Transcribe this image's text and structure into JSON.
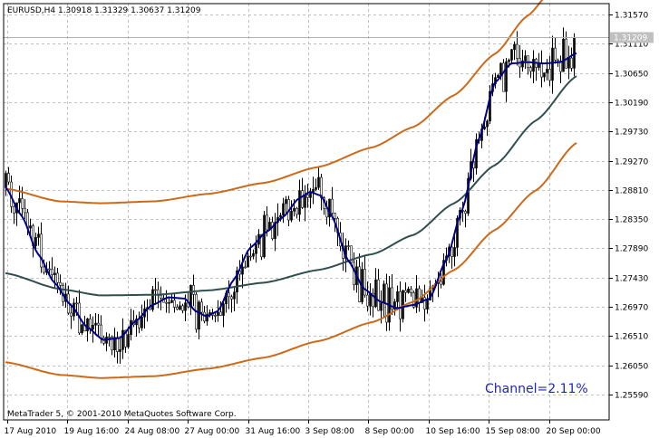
{
  "chart_data": {
    "type": "candlestick",
    "symbol_info": "EURUSD,H4  1.30918 1.31329 1.30637 1.31209",
    "watermark": "MetaTrader 5, © 2001-2010 MetaQuotes Software Corp.",
    "annotation": "Channel=2.11%",
    "current_price_label": "1.31209",
    "current_price": 1.31209,
    "ylim": [
      1.253,
      1.319
    ],
    "y_ticks": [
      "1.31570",
      "1.31110",
      "1.30650",
      "1.30190",
      "1.29730",
      "1.29270",
      "1.28810",
      "1.28350",
      "1.27890",
      "1.27430",
      "1.26970",
      "1.26510",
      "1.26050",
      "1.25590"
    ],
    "x_ticks": [
      "17 Aug 2010",
      "19 Aug 16:00",
      "24 Aug 08:00",
      "27 Aug 00:00",
      "31 Aug 16:00",
      "3 Sep 08:00",
      "8 Sep 00:00",
      "10 Sep 16:00",
      "15 Sep 08:00",
      "20 Sep 00:00"
    ],
    "grid": true,
    "colors": {
      "background": "#ffffff",
      "grid": "#c0c0c0",
      "candles": "#000000",
      "channel_bands": "#cc6a1a",
      "slow_ma": "#2f4f4f",
      "fast_filter": "#00008b",
      "annotation": "#1f2aa8"
    },
    "series": [
      {
        "name": "fast",
        "values": [
          [
            0,
            1.2885
          ],
          [
            6,
            1.284
          ],
          [
            12,
            1.278
          ],
          [
            18,
            1.2735
          ],
          [
            24,
            1.27
          ],
          [
            30,
            1.2665
          ],
          [
            36,
            1.2645
          ],
          [
            42,
            1.2648
          ],
          [
            48,
            1.2675
          ],
          [
            54,
            1.27
          ],
          [
            60,
            1.2712
          ],
          [
            66,
            1.271
          ],
          [
            70,
            1.269
          ],
          [
            74,
            1.2682
          ],
          [
            78,
            1.269
          ],
          [
            84,
            1.274
          ],
          [
            90,
            1.279
          ],
          [
            96,
            1.2815
          ],
          [
            102,
            1.2838
          ],
          [
            108,
            1.2868
          ],
          [
            112,
            1.2878
          ],
          [
            116,
            1.2872
          ],
          [
            120,
            1.284
          ],
          [
            126,
            1.277
          ],
          [
            132,
            1.2725
          ],
          [
            138,
            1.2705
          ],
          [
            144,
            1.2695
          ],
          [
            150,
            1.27
          ],
          [
            156,
            1.271
          ],
          [
            162,
            1.277
          ],
          [
            168,
            1.285
          ],
          [
            174,
            1.296
          ],
          [
            180,
            1.305
          ],
          [
            186,
            1.308
          ],
          [
            192,
            1.3082
          ],
          [
            198,
            1.308
          ],
          [
            204,
            1.3082
          ],
          [
            210,
            1.3096
          ]
        ]
      },
      {
        "name": "slow",
        "values": [
          [
            0,
            1.275
          ],
          [
            20,
            1.2725
          ],
          [
            35,
            1.2715
          ],
          [
            55,
            1.2716
          ],
          [
            75,
            1.2723
          ],
          [
            95,
            1.2735
          ],
          [
            115,
            1.2755
          ],
          [
            135,
            1.278
          ],
          [
            150,
            1.281
          ],
          [
            165,
            1.286
          ],
          [
            180,
            1.292
          ],
          [
            195,
            1.299
          ],
          [
            210,
            1.306
          ]
        ]
      },
      {
        "name": "upper",
        "values": [
          [
            0,
            1.2883
          ],
          [
            20,
            1.2863
          ],
          [
            35,
            1.286
          ],
          [
            55,
            1.2863
          ],
          [
            75,
            1.2875
          ],
          [
            95,
            1.2892
          ],
          [
            115,
            1.2917
          ],
          [
            135,
            1.2948
          ],
          [
            150,
            1.298
          ],
          [
            165,
            1.303
          ],
          [
            180,
            1.3095
          ],
          [
            192,
            1.3155
          ],
          [
            200,
            1.319
          ]
        ]
      },
      {
        "name": "lower",
        "values": [
          [
            0,
            1.261
          ],
          [
            20,
            1.259
          ],
          [
            35,
            1.2585
          ],
          [
            55,
            1.2588
          ],
          [
            75,
            1.26
          ],
          [
            95,
            1.2617
          ],
          [
            115,
            1.2643
          ],
          [
            135,
            1.2673
          ],
          [
            150,
            1.2705
          ],
          [
            165,
            1.2755
          ],
          [
            180,
            1.2818
          ],
          [
            195,
            1.288
          ],
          [
            210,
            1.2955
          ]
        ]
      }
    ]
  }
}
